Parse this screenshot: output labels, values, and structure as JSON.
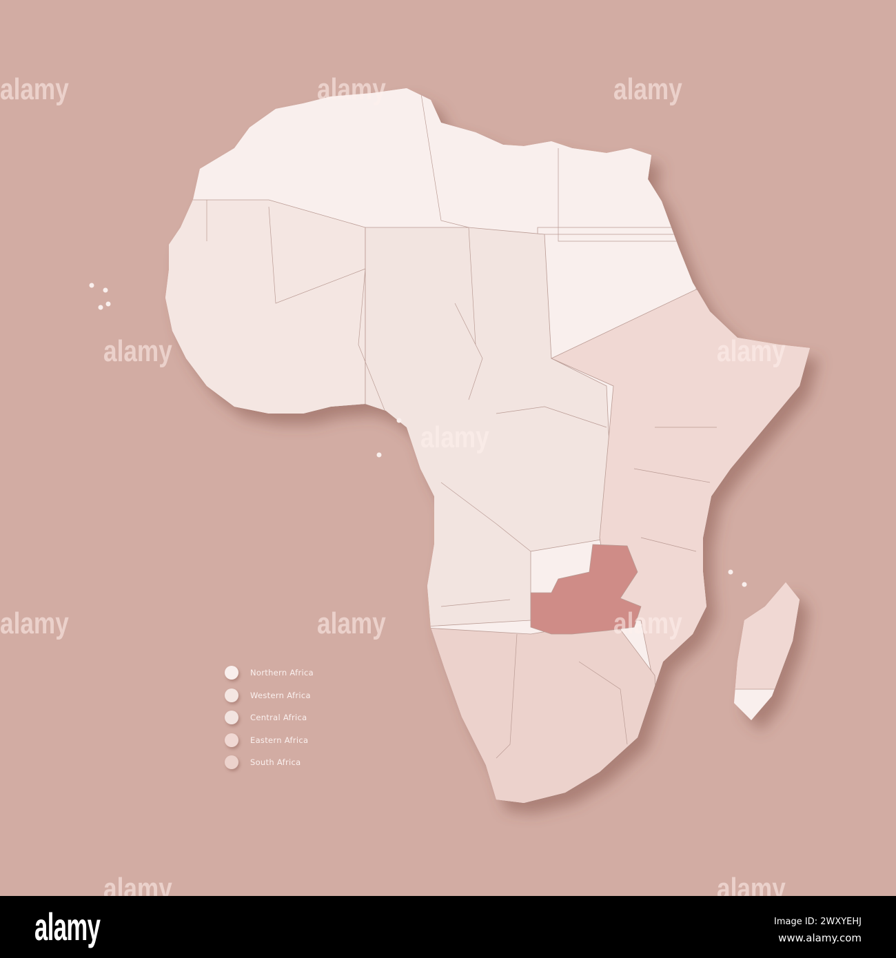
{
  "map": {
    "highlighted_region": "Zambia",
    "colors": {
      "background": "#d2aca3",
      "northern": "#f9efed",
      "western": "#f4e6e2",
      "central": "#f2e4e0",
      "eastern": "#f0d8d3",
      "south": "#ecd2cc",
      "highlight": "#cf8c87",
      "border": "#b99a93"
    }
  },
  "legend": {
    "items": [
      {
        "label": "Northern Africa",
        "color": "#f9efed"
      },
      {
        "label": "Western Africa",
        "color": "#f4e6e2"
      },
      {
        "label": "Central Africa",
        "color": "#f2e4e0"
      },
      {
        "label": "Eastern Africa",
        "color": "#f0d8d3"
      },
      {
        "label": "South Africa",
        "color": "#ecd2cc"
      }
    ]
  },
  "watermark": "alamy",
  "footer": {
    "logo": "alamy",
    "image_id": "Image ID: 2WXYEHJ",
    "url": "www.alamy.com"
  }
}
